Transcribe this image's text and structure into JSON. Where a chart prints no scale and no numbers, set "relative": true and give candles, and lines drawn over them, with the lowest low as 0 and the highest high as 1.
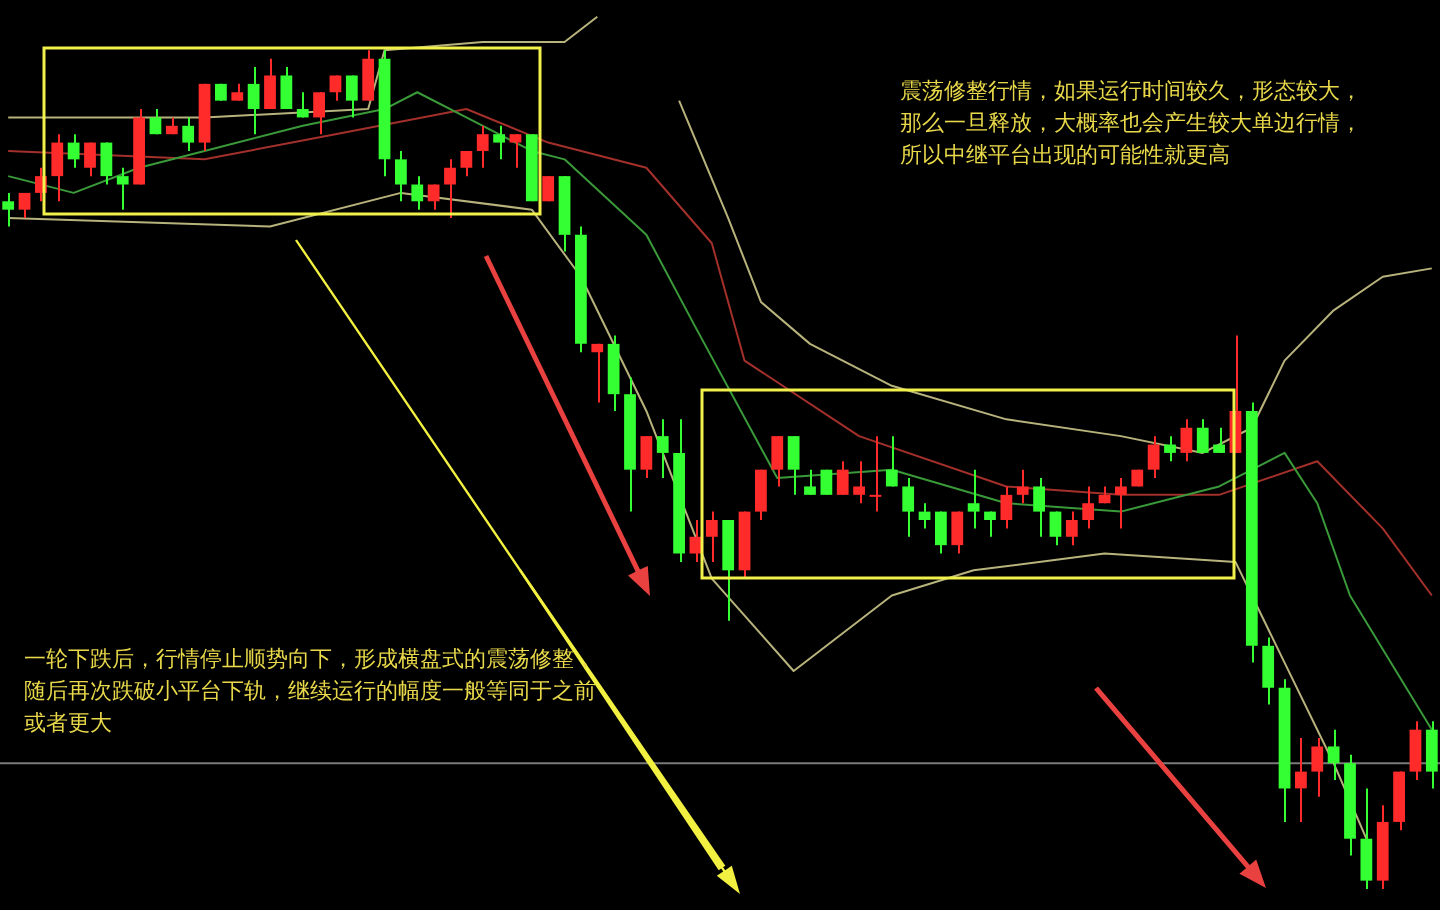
{
  "chart_data": {
    "type": "candlestick",
    "relative": true,
    "categories": [
      null,
      null,
      null,
      null,
      null,
      null,
      null,
      null,
      null,
      null,
      null,
      null,
      null,
      null,
      null,
      null,
      null,
      null,
      null,
      null,
      null,
      null,
      null,
      null,
      null,
      null,
      null,
      null,
      null,
      null,
      null,
      null,
      null,
      null,
      null,
      null,
      null,
      null,
      null,
      null,
      null,
      null,
      null,
      null,
      null,
      null,
      null,
      null,
      null,
      null,
      null,
      null,
      null,
      null,
      null,
      null,
      null,
      null,
      null,
      null,
      null,
      null,
      null,
      null,
      null,
      null,
      null,
      null,
      null,
      null,
      null,
      null,
      null,
      null,
      null,
      null,
      null,
      null,
      null,
      null,
      null,
      null,
      null,
      null,
      null,
      null,
      null,
      null
    ],
    "ohlc": [
      [
        0.82,
        0.83,
        0.79,
        0.81
      ],
      [
        0.81,
        0.83,
        0.8,
        0.83
      ],
      [
        0.83,
        0.86,
        0.82,
        0.85
      ],
      [
        0.85,
        0.9,
        0.82,
        0.89
      ],
      [
        0.89,
        0.9,
        0.86,
        0.87
      ],
      [
        0.86,
        0.89,
        0.85,
        0.89
      ],
      [
        0.89,
        0.89,
        0.84,
        0.85
      ],
      [
        0.85,
        0.86,
        0.81,
        0.84
      ],
      [
        0.84,
        0.93,
        0.84,
        0.92
      ],
      [
        0.92,
        0.93,
        0.9,
        0.9
      ],
      [
        0.9,
        0.92,
        0.9,
        0.91
      ],
      [
        0.91,
        0.92,
        0.88,
        0.89
      ],
      [
        0.89,
        0.96,
        0.88,
        0.96
      ],
      [
        0.96,
        0.96,
        0.94,
        0.94
      ],
      [
        0.94,
        0.96,
        0.94,
        0.95
      ],
      [
        0.96,
        0.98,
        0.9,
        0.93
      ],
      [
        0.93,
        0.99,
        0.93,
        0.97
      ],
      [
        0.97,
        0.98,
        0.93,
        0.93
      ],
      [
        0.93,
        0.95,
        0.92,
        0.92
      ],
      [
        0.92,
        0.95,
        0.9,
        0.95
      ],
      [
        0.95,
        0.97,
        0.94,
        0.97
      ],
      [
        0.97,
        0.97,
        0.92,
        0.94
      ],
      [
        0.94,
        1.0,
        0.94,
        0.99
      ],
      [
        0.99,
        1.0,
        0.85,
        0.87
      ],
      [
        0.87,
        0.88,
        0.82,
        0.84
      ],
      [
        0.84,
        0.85,
        0.81,
        0.82
      ],
      [
        0.82,
        0.84,
        0.81,
        0.84
      ],
      [
        0.84,
        0.87,
        0.8,
        0.86
      ],
      [
        0.86,
        0.88,
        0.85,
        0.88
      ],
      [
        0.88,
        0.91,
        0.86,
        0.9
      ],
      [
        0.9,
        0.91,
        0.87,
        0.89
      ],
      [
        0.89,
        0.9,
        0.86,
        0.9
      ],
      [
        0.9,
        0.9,
        0.82,
        0.82
      ],
      [
        0.82,
        0.85,
        0.82,
        0.85
      ],
      [
        0.85,
        0.85,
        0.76,
        0.78
      ],
      [
        0.78,
        0.79,
        0.64,
        0.65
      ],
      [
        0.64,
        0.65,
        0.58,
        0.65
      ],
      [
        0.65,
        0.66,
        0.57,
        0.59
      ],
      [
        0.59,
        0.61,
        0.45,
        0.5
      ],
      [
        0.5,
        0.54,
        0.49,
        0.54
      ],
      [
        0.54,
        0.56,
        0.49,
        0.52
      ],
      [
        0.52,
        0.56,
        0.39,
        0.4
      ],
      [
        0.4,
        0.44,
        0.39,
        0.42
      ],
      [
        0.42,
        0.45,
        0.39,
        0.44
      ],
      [
        0.44,
        0.44,
        0.32,
        0.38
      ],
      [
        0.38,
        0.45,
        0.37,
        0.45
      ],
      [
        0.45,
        0.5,
        0.44,
        0.5
      ],
      [
        0.5,
        0.54,
        0.48,
        0.54
      ],
      [
        0.54,
        0.54,
        0.47,
        0.5
      ],
      [
        0.48,
        0.5,
        0.47,
        0.47
      ],
      [
        0.5,
        0.5,
        0.47,
        0.47
      ],
      [
        0.47,
        0.51,
        0.47,
        0.5
      ],
      [
        0.47,
        0.51,
        0.46,
        0.48
      ],
      [
        0.47,
        0.54,
        0.45,
        0.47
      ],
      [
        0.5,
        0.54,
        0.48,
        0.48
      ],
      [
        0.48,
        0.49,
        0.42,
        0.45
      ],
      [
        0.45,
        0.46,
        0.43,
        0.44
      ],
      [
        0.45,
        0.45,
        0.4,
        0.41
      ],
      [
        0.41,
        0.45,
        0.4,
        0.45
      ],
      [
        0.46,
        0.5,
        0.43,
        0.45
      ],
      [
        0.45,
        0.45,
        0.42,
        0.44
      ],
      [
        0.44,
        0.48,
        0.43,
        0.47
      ],
      [
        0.47,
        0.5,
        0.46,
        0.48
      ],
      [
        0.48,
        0.49,
        0.42,
        0.45
      ],
      [
        0.45,
        0.45,
        0.41,
        0.42
      ],
      [
        0.42,
        0.45,
        0.41,
        0.44
      ],
      [
        0.44,
        0.48,
        0.43,
        0.46
      ],
      [
        0.46,
        0.48,
        0.46,
        0.47
      ],
      [
        0.47,
        0.49,
        0.43,
        0.48
      ],
      [
        0.48,
        0.5,
        0.48,
        0.5
      ],
      [
        0.5,
        0.54,
        0.49,
        0.53
      ],
      [
        0.53,
        0.54,
        0.51,
        0.52
      ],
      [
        0.52,
        0.56,
        0.51,
        0.55
      ],
      [
        0.55,
        0.56,
        0.52,
        0.52
      ],
      [
        0.53,
        0.55,
        0.52,
        0.52
      ],
      [
        0.52,
        0.66,
        0.52,
        0.57
      ],
      [
        0.57,
        0.58,
        0.27,
        0.29
      ],
      [
        0.29,
        0.3,
        0.22,
        0.24
      ],
      [
        0.24,
        0.25,
        0.08,
        0.12
      ],
      [
        0.12,
        0.18,
        0.08,
        0.14
      ],
      [
        0.14,
        0.18,
        0.11,
        0.17
      ],
      [
        0.17,
        0.19,
        0.13,
        0.15
      ],
      [
        0.15,
        0.16,
        0.04,
        0.06
      ],
      [
        0.06,
        0.12,
        0.0,
        0.01
      ],
      [
        0.01,
        0.1,
        0.0,
        0.08
      ],
      [
        0.08,
        0.14,
        0.07,
        0.14
      ],
      [
        0.14,
        0.2,
        0.13,
        0.19
      ],
      [
        0.19,
        0.2,
        0.12,
        0.14
      ]
    ],
    "colors": [
      "#33ff33",
      "#ff2a2a",
      "#ff2a2a",
      "#ff2a2a",
      "#33ff33",
      "#ff2a2a",
      "#33ff33",
      "#33ff33",
      "#ff2a2a",
      "#33ff33",
      "#ff2a2a",
      "#33ff33",
      "#ff2a2a",
      "#33ff33",
      "#ff2a2a",
      "#33ff33",
      "#ff2a2a",
      "#33ff33",
      "#33ff33",
      "#ff2a2a",
      "#ff2a2a",
      "#33ff33",
      "#ff2a2a",
      "#33ff33",
      "#33ff33",
      "#33ff33",
      "#ff2a2a",
      "#ff2a2a",
      "#ff2a2a",
      "#ff2a2a",
      "#33ff33",
      "#ff2a2a",
      "#33ff33",
      "#ff2a2a",
      "#33ff33",
      "#33ff33",
      "#ff2a2a",
      "#33ff33",
      "#33ff33",
      "#ff2a2a",
      "#33ff33",
      "#33ff33",
      "#ff2a2a",
      "#ff2a2a",
      "#33ff33",
      "#ff2a2a",
      "#ff2a2a",
      "#ff2a2a",
      "#33ff33",
      "#33ff33",
      "#33ff33",
      "#ff2a2a",
      "#ff2a2a",
      "#ff2a2a",
      "#33ff33",
      "#33ff33",
      "#33ff33",
      "#33ff33",
      "#ff2a2a",
      "#33ff33",
      "#33ff33",
      "#ff2a2a",
      "#ff2a2a",
      "#33ff33",
      "#33ff33",
      "#ff2a2a",
      "#ff2a2a",
      "#ff2a2a",
      "#ff2a2a",
      "#ff2a2a",
      "#ff2a2a",
      "#33ff33",
      "#ff2a2a",
      "#33ff33",
      "#33ff33",
      "#ff2a2a",
      "#33ff33",
      "#33ff33",
      "#33ff33",
      "#ff2a2a",
      "#ff2a2a",
      "#33ff33",
      "#33ff33",
      "#33ff33",
      "#ff2a2a",
      "#ff2a2a",
      "#ff2a2a",
      "#33ff33"
    ],
    "series": [
      {
        "type": "line",
        "color": "#b8b37c",
        "values": [
          0.92,
          null,
          null,
          null,
          null,
          null,
          null,
          null,
          null,
          null,
          null,
          null,
          0.92,
          null,
          null,
          null,
          null,
          null,
          null,
          null,
          null,
          null,
          0.93,
          1.0,
          null,
          null,
          null,
          null,
          null,
          1.01,
          null,
          null,
          null,
          null,
          1.01,
          null,
          1.04,
          null,
          null,
          null,
          null,
          null,
          null,
          null,
          null,
          null,
          null,
          null,
          null,
          null,
          null,
          null,
          null,
          null,
          null,
          null,
          null,
          null,
          null,
          null,
          null,
          null,
          null,
          null,
          null,
          null,
          null,
          null,
          null,
          null,
          null,
          null,
          null,
          null,
          null,
          null,
          null,
          null,
          null,
          null,
          null,
          null,
          null,
          null,
          null,
          null,
          null,
          null
        ]
      },
      {
        "type": "line",
        "color": "#b8b37c",
        "values": [
          null,
          null,
          null,
          null,
          null,
          null,
          null,
          null,
          null,
          null,
          null,
          null,
          null,
          null,
          null,
          null,
          null,
          null,
          null,
          null,
          null,
          null,
          null,
          null,
          null,
          null,
          null,
          null,
          null,
          null,
          null,
          null,
          null,
          null,
          null,
          null,
          null,
          null,
          null,
          null,
          null,
          0.94,
          null,
          null,
          0.8,
          null,
          0.7,
          null,
          null,
          0.65,
          null,
          null,
          null,
          null,
          0.6,
          null,
          null,
          null,
          null,
          null,
          null,
          0.56,
          null,
          null,
          null,
          null,
          null,
          null,
          0.54,
          null,
          null,
          null,
          null,
          0.52,
          null,
          null,
          0.55,
          null,
          0.63,
          null,
          null,
          0.69,
          null,
          null,
          0.73,
          null,
          null,
          0.74
        ]
      },
      {
        "type": "line",
        "color": "#b8b37c",
        "values": [
          0.8,
          null,
          null,
          null,
          null,
          null,
          null,
          null,
          null,
          null,
          null,
          null,
          null,
          null,
          null,
          null,
          0.79,
          null,
          null,
          null,
          null,
          null,
          null,
          null,
          0.83,
          null,
          null,
          null,
          null,
          null,
          null,
          null,
          0.81,
          null,
          null,
          0.73,
          null,
          null,
          null,
          0.57,
          null,
          null,
          null,
          0.37,
          null,
          null,
          null,
          null,
          0.26,
          null,
          null,
          null,
          null,
          null,
          0.35,
          null,
          null,
          null,
          null,
          0.38,
          null,
          null,
          null,
          null,
          null,
          null,
          null,
          0.4,
          null,
          null,
          null,
          null,
          null,
          null,
          null,
          0.39,
          null,
          null,
          0.27,
          null,
          null,
          0.15,
          null,
          0.06,
          null,
          null,
          null,
          null
        ]
      },
      {
        "type": "line",
        "color": "#3a9a3a",
        "values": [
          0.85,
          null,
          null,
          null,
          0.83,
          null,
          null,
          null,
          0.86,
          null,
          null,
          null,
          0.88,
          null,
          null,
          null,
          null,
          null,
          0.91,
          null,
          null,
          null,
          null,
          0.93,
          null,
          0.95,
          null,
          null,
          0.92,
          null,
          null,
          null,
          0.88,
          null,
          0.87,
          null,
          null,
          null,
          null,
          0.78,
          null,
          null,
          0.67,
          null,
          null,
          null,
          null,
          0.49,
          null,
          null,
          null,
          null,
          null,
          null,
          0.5,
          null,
          null,
          null,
          null,
          null,
          null,
          0.46,
          null,
          null,
          null,
          null,
          null,
          null,
          0.45,
          null,
          null,
          null,
          null,
          null,
          0.48,
          null,
          null,
          null,
          0.52,
          null,
          0.46,
          null,
          0.35,
          null,
          null,
          null,
          null,
          0.19
        ]
      },
      {
        "type": "line",
        "color": "#a3302a",
        "values": [
          0.88,
          null,
          null,
          null,
          null,
          null,
          null,
          null,
          null,
          null,
          null,
          null,
          0.87,
          null,
          null,
          null,
          null,
          null,
          null,
          null,
          0.9,
          null,
          null,
          null,
          null,
          null,
          null,
          null,
          0.93,
          null,
          null,
          null,
          null,
          0.89,
          null,
          null,
          null,
          null,
          null,
          0.86,
          null,
          null,
          null,
          0.77,
          null,
          0.63,
          null,
          null,
          null,
          null,
          null,
          null,
          0.54,
          null,
          null,
          null,
          null,
          null,
          null,
          null,
          null,
          0.48,
          null,
          null,
          null,
          null,
          null,
          null,
          0.47,
          null,
          null,
          null,
          null,
          null,
          0.47,
          null,
          null,
          null,
          null,
          null,
          0.51,
          null,
          null,
          null,
          0.43,
          null,
          null,
          0.35
        ]
      }
    ],
    "ref_lines": [
      {
        "axis": "y",
        "value": 0.15,
        "color": "#7a7a7a"
      }
    ],
    "tick_labels": false,
    "annotations": [
      "震荡修整行情，如果运行时间较久，形态较大，那么一旦释放，大概率也会产生较大单边行情，所以中继平台出现的可能性就更高",
      "一轮下跌后，行情停止顺势向下，形成横盘式的震荡修整，随后再次跌破小平台下轨，继续运行的幅度一般等同于之前或者更大"
    ]
  }
}
